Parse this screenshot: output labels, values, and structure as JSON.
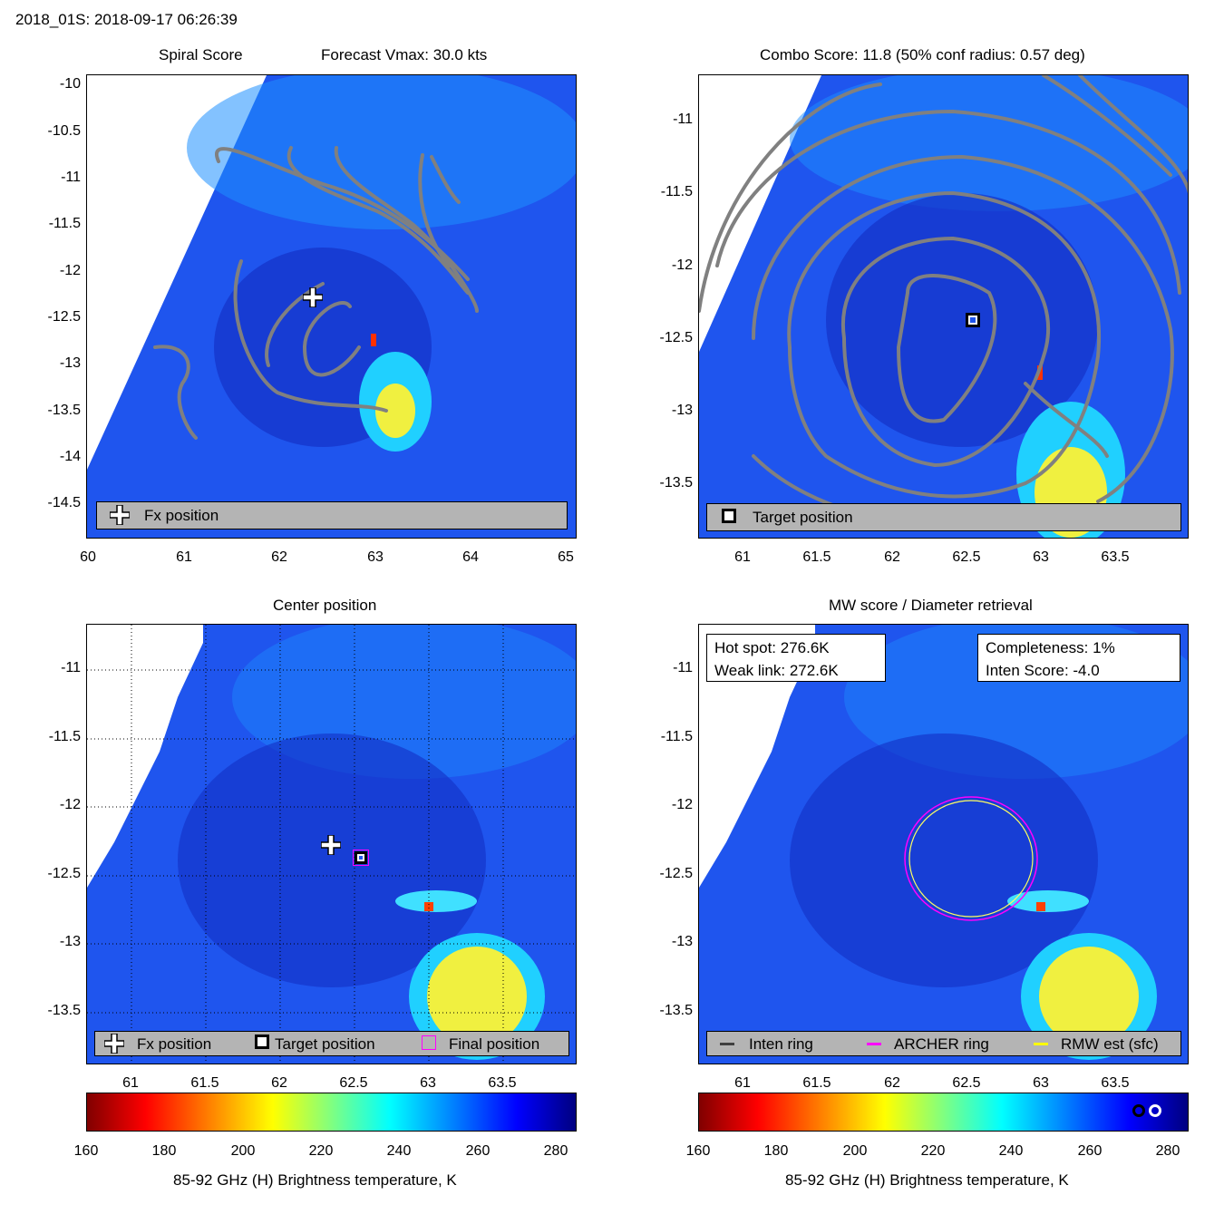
{
  "header": {
    "title": "2018_01S: 2018-09-17 06:26:39"
  },
  "panels": {
    "spiral": {
      "title_left": "Spiral Score",
      "title_right": "Forecast Vmax: 30.0 kts",
      "yticks": [
        "-10",
        "-10.5",
        "-11",
        "-11.5",
        "-12",
        "-12.5",
        "-13",
        "-13.5",
        "-14",
        "-14.5"
      ],
      "xticks": [
        "60",
        "61",
        "62",
        "63",
        "64",
        "65"
      ],
      "legend": {
        "fx_label": "Fx position"
      }
    },
    "combo": {
      "title": "Combo Score: 11.8  (50% conf radius: 0.57 deg)",
      "yticks": [
        "-11",
        "-11.5",
        "-12",
        "-12.5",
        "-13",
        "-13.5"
      ],
      "xticks": [
        "61",
        "61.5",
        "62",
        "62.5",
        "63",
        "63.5"
      ],
      "legend": {
        "target_label": "Target position"
      }
    },
    "center": {
      "title": "Center position",
      "yticks": [
        "-11",
        "-11.5",
        "-12",
        "-12.5",
        "-13",
        "-13.5"
      ],
      "xticks": [
        "61",
        "61.5",
        "62",
        "62.5",
        "63",
        "63.5"
      ],
      "legend": {
        "fx_label": "Fx position",
        "target_label": "Target position",
        "final_label": "Final position"
      }
    },
    "mw": {
      "title": "MW score / Diameter retrieval",
      "yticks": [
        "-11",
        "-11.5",
        "-12",
        "-12.5",
        "-13",
        "-13.5"
      ],
      "xticks": [
        "61",
        "61.5",
        "62",
        "62.5",
        "63",
        "63.5"
      ],
      "info_left": {
        "hot_spot": "Hot spot: 276.6K",
        "weak_link": "Weak link: 272.6K"
      },
      "info_right": {
        "completeness": "Completeness: 1%",
        "inten_score": "Inten Score: -4.0"
      },
      "legend": {
        "inten_ring": "Inten ring",
        "archer_ring": "ARCHER ring",
        "rmw_est": "RMW est (sfc)"
      }
    }
  },
  "colorbar": {
    "ticks": [
      "160",
      "180",
      "200",
      "220",
      "240",
      "260",
      "280"
    ],
    "label": "85-92 GHz (H) Brightness temperature, K"
  },
  "colors": {
    "contour": "#808080",
    "ocean_blue": "#1a3cf0",
    "archer_ring": "#ff00ff",
    "rmw_ring": "#ffff00",
    "inten_ring": "#404040",
    "legend_bg": "#b4b4b4"
  },
  "chart_data": [
    {
      "type": "heatmap",
      "title": "Spiral Score",
      "annotation": "Forecast Vmax: 30.0 kts",
      "xlim": [
        60,
        65
      ],
      "ylim": [
        -14.9,
        -9.9
      ],
      "markers": [
        {
          "name": "Fx position",
          "x": 62.3,
          "y": -12.25
        }
      ]
    },
    {
      "type": "heatmap",
      "title": "Combo Score: 11.8  (50% conf radius: 0.57 deg)",
      "xlim": [
        60.7,
        64.0
      ],
      "ylim": [
        -13.88,
        -10.7
      ],
      "markers": [
        {
          "name": "Target position",
          "x": 62.55,
          "y": -12.37
        }
      ]
    },
    {
      "type": "heatmap",
      "title": "Center position",
      "xlim": [
        60.7,
        64.0
      ],
      "ylim": [
        -13.88,
        -10.7
      ],
      "markers": [
        {
          "name": "Fx position",
          "x": 62.35,
          "y": -12.27
        },
        {
          "name": "Target position",
          "x": 62.55,
          "y": -12.37
        },
        {
          "name": "Final position",
          "x": 62.55,
          "y": -12.37
        }
      ]
    },
    {
      "type": "heatmap",
      "title": "MW score / Diameter retrieval",
      "xlim": [
        60.7,
        64.0
      ],
      "ylim": [
        -13.88,
        -10.7
      ],
      "rings": [
        {
          "name": "ARCHER ring",
          "center_x": 62.55,
          "center_y": -12.37,
          "radius_deg": 0.44
        },
        {
          "name": "RMW est (sfc)",
          "center_x": 62.55,
          "center_y": -12.37,
          "radius_deg": 0.42
        }
      ],
      "colorbar_range": [
        160,
        285
      ]
    }
  ]
}
